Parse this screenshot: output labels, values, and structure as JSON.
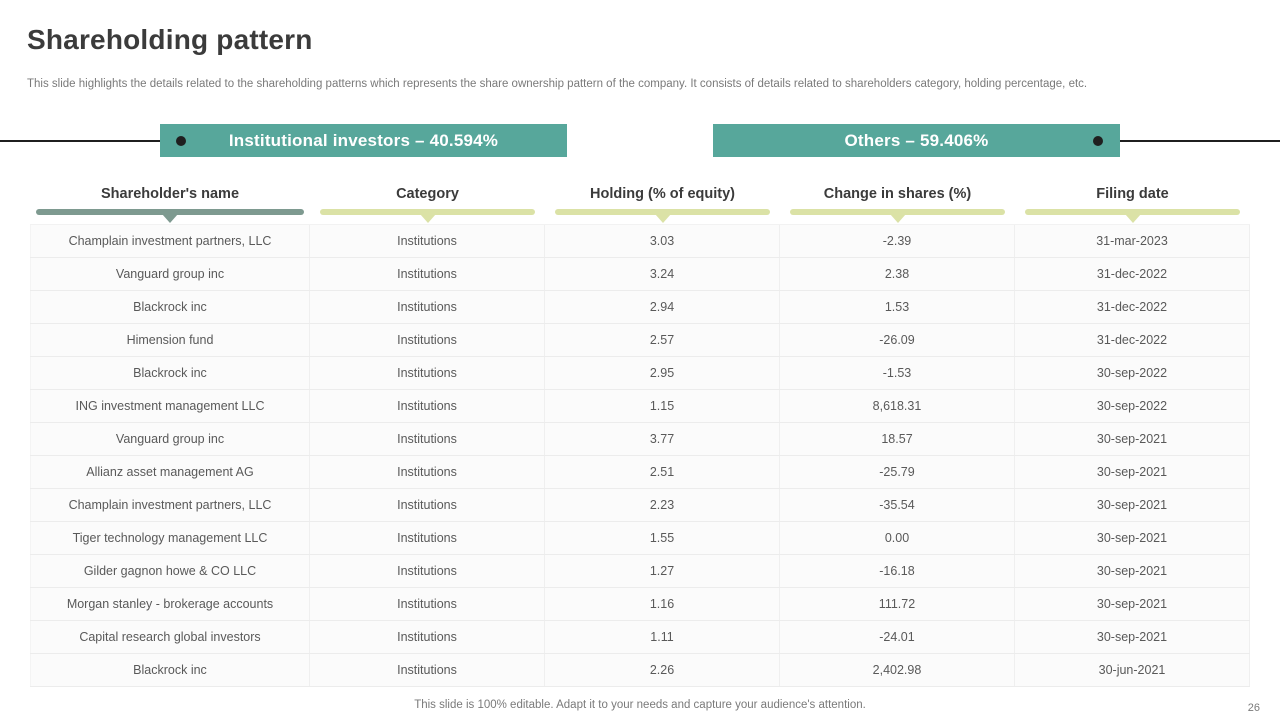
{
  "slide": {
    "title": "Shareholding pattern",
    "subtitle": "This slide highlights the details related to the shareholding patterns which represents the share ownership pattern of the company. It consists of details related to shareholders category, holding percentage, etc.",
    "footer": "This slide is 100% editable. Adapt it to your needs and capture your audience's attention.",
    "page_number": "26"
  },
  "banners": {
    "institutional": "Institutional investors – 40.594%",
    "others": "Others – 59.406%"
  },
  "colors": {
    "banner_teal": "#57a79b",
    "header_bar_primary": "#7e9a90",
    "header_bar_secondary": "#dbe2a6",
    "connector": "#1f1f1f"
  },
  "table": {
    "columns": [
      "Shareholder's name",
      "Category",
      "Holding (% of equity)",
      "Change in shares (%)",
      "Filing date"
    ],
    "rows": [
      {
        "name": "Champlain investment partners, LLC",
        "category": "Institutions",
        "holding": "3.03",
        "change": "-2.39",
        "filing_date": "31-mar-2023"
      },
      {
        "name": "Vanguard group inc",
        "category": "Institutions",
        "holding": "3.24",
        "change": "2.38",
        "filing_date": "31-dec-2022"
      },
      {
        "name": "Blackrock inc",
        "category": "Institutions",
        "holding": "2.94",
        "change": "1.53",
        "filing_date": "31-dec-2022"
      },
      {
        "name": "Himension fund",
        "category": "Institutions",
        "holding": "2.57",
        "change": "-26.09",
        "filing_date": "31-dec-2022"
      },
      {
        "name": "Blackrock inc",
        "category": "Institutions",
        "holding": "2.95",
        "change": "-1.53",
        "filing_date": "30-sep-2022"
      },
      {
        "name": "ING investment management LLC",
        "category": "Institutions",
        "holding": "1.15",
        "change": "8,618.31",
        "filing_date": "30-sep-2022"
      },
      {
        "name": "Vanguard group inc",
        "category": "Institutions",
        "holding": "3.77",
        "change": "18.57",
        "filing_date": "30-sep-2021"
      },
      {
        "name": "Allianz asset management AG",
        "category": "Institutions",
        "holding": "2.51",
        "change": "-25.79",
        "filing_date": "30-sep-2021"
      },
      {
        "name": "Champlain investment partners, LLC",
        "category": "Institutions",
        "holding": "2.23",
        "change": "-35.54",
        "filing_date": "30-sep-2021"
      },
      {
        "name": "Tiger technology management LLC",
        "category": "Institutions",
        "holding": "1.55",
        "change": "0.00",
        "filing_date": "30-sep-2021"
      },
      {
        "name": "Gilder gagnon howe & CO LLC",
        "category": "Institutions",
        "holding": "1.27",
        "change": "-16.18",
        "filing_date": "30-sep-2021"
      },
      {
        "name": "Morgan stanley - brokerage accounts",
        "category": "Institutions",
        "holding": "1.16",
        "change": "111.72",
        "filing_date": "30-sep-2021"
      },
      {
        "name": "Capital research global investors",
        "category": "Institutions",
        "holding": "1.11",
        "change": "-24.01",
        "filing_date": "30-sep-2021"
      },
      {
        "name": "Blackrock inc",
        "category": "Institutions",
        "holding": "2.26",
        "change": "2,402.98",
        "filing_date": "30-jun-2021"
      }
    ]
  }
}
